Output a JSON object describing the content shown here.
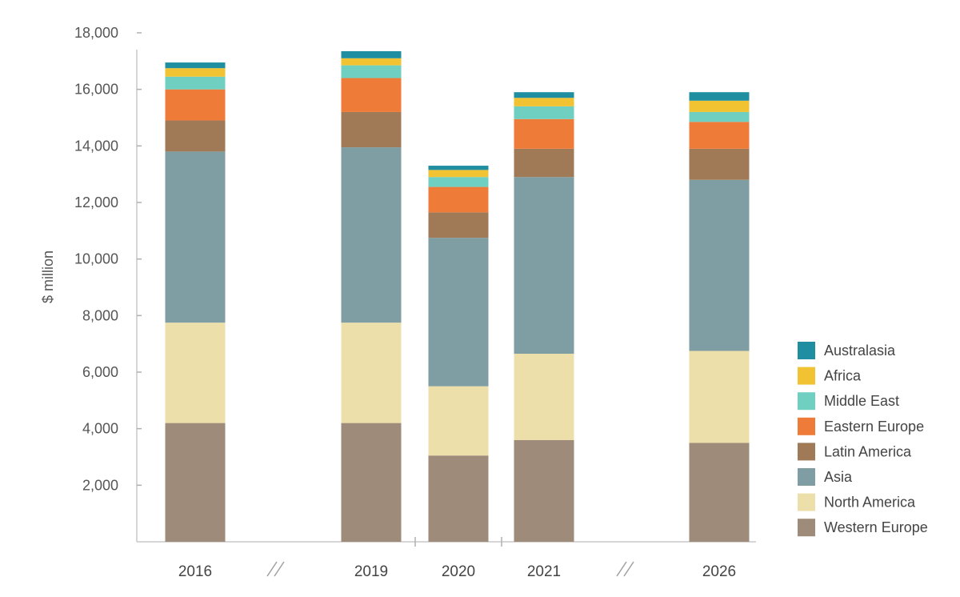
{
  "chart_data": {
    "type": "bar",
    "stacked": true,
    "title": "",
    "xlabel": "",
    "ylabel": "$ million",
    "ylim": [
      0,
      18000
    ],
    "yticks": [
      2000,
      4000,
      6000,
      8000,
      10000,
      12000,
      14000,
      16000,
      18000
    ],
    "ytick_labels": [
      "2,000",
      "4,000",
      "6,000",
      "8,000",
      "10,000",
      "12,000",
      "14,000",
      "16,000",
      "18,000"
    ],
    "categories": [
      "2016",
      "2019",
      "2020",
      "2021",
      "2026"
    ],
    "axis_breaks": [
      "between 2016 and 2019",
      "between 2021 and 2026"
    ],
    "grid": false,
    "legend_position": "bottom-right",
    "series": [
      {
        "name": "Western Europe",
        "color": "#9e8b7a",
        "values": [
          4200,
          4200,
          3050,
          3600,
          3500
        ]
      },
      {
        "name": "North America",
        "color": "#ecdfaa",
        "values": [
          3550,
          3550,
          2450,
          3050,
          3250
        ]
      },
      {
        "name": "Asia",
        "color": "#7f9ea3",
        "values": [
          6050,
          6200,
          5250,
          6250,
          6050
        ]
      },
      {
        "name": "Latin America",
        "color": "#a07a57",
        "values": [
          1100,
          1250,
          900,
          1000,
          1100
        ]
      },
      {
        "name": "Eastern Europe",
        "color": "#ef7b39",
        "values": [
          1100,
          1200,
          900,
          1050,
          950
        ]
      },
      {
        "name": "Middle East",
        "color": "#6fcfc0",
        "values": [
          450,
          450,
          350,
          450,
          350
        ]
      },
      {
        "name": "Africa",
        "color": "#f1c232",
        "values": [
          300,
          250,
          250,
          300,
          400
        ]
      },
      {
        "name": "Australasia",
        "color": "#1f8ea1",
        "values": [
          200,
          250,
          150,
          200,
          300
        ]
      }
    ]
  }
}
